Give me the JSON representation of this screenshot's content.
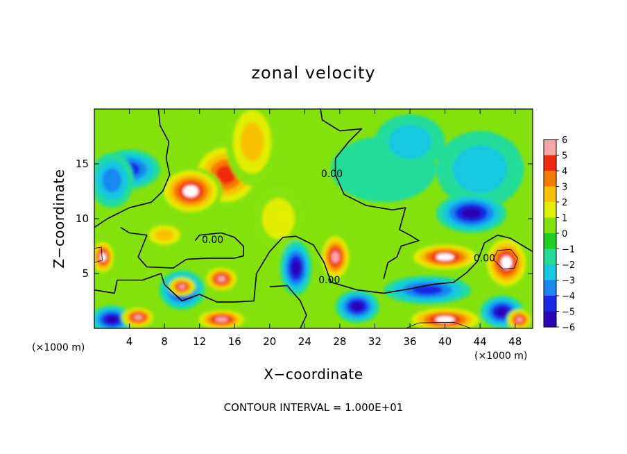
{
  "chart_data": {
    "type": "heatmap",
    "title": "zonal velocity",
    "xlabel": "X−coordinate",
    "ylabel": "Z−coordinate",
    "x_unit_label": "(×1000 m)",
    "z_unit_label": "(×1000 m)",
    "xlim": [
      0,
      50
    ],
    "ylim": [
      0,
      20
    ],
    "x_ticks": [
      "4",
      "8",
      "12",
      "16",
      "20",
      "24",
      "28",
      "32",
      "36",
      "40",
      "44",
      "48"
    ],
    "y_ticks": [
      "5",
      "10",
      "15"
    ],
    "colorbar": {
      "range": [
        -6,
        6
      ],
      "ticks": [
        "6",
        "5",
        "4",
        "3",
        "2",
        "1",
        "0",
        "−1",
        "−2",
        "−3",
        "−4",
        "−5",
        "−6"
      ],
      "stops": [
        "#6a0a9a",
        "#2a06b8",
        "#1828e6",
        "#1888f0",
        "#16c8e0",
        "#22dc9a",
        "#20d020",
        "#84e20c",
        "#e2ee00",
        "#f8c200",
        "#f67a00",
        "#ef2a10",
        "#f6a8a8"
      ]
    },
    "contour_labels": [
      "0.00",
      "0.00",
      "0.00",
      "0.00"
    ],
    "contour_interval_text": "CONTOUR INTERVAL = 1.000E+01",
    "features": [
      {
        "x": 11,
        "z": 12.5,
        "value": 8,
        "rx": 3.6,
        "rz": 2.2
      },
      {
        "x": 15,
        "z": 14,
        "value": 5,
        "rx": 4,
        "rz": 3
      },
      {
        "x": 18,
        "z": 17,
        "value": 3,
        "rx": 3,
        "rz": 4
      },
      {
        "x": 4,
        "z": 14.5,
        "value": -4,
        "rx": 3.5,
        "rz": 1.8
      },
      {
        "x": 2,
        "z": 13.5,
        "value": -3,
        "rx": 2.5,
        "rz": 2.5
      },
      {
        "x": 40,
        "z": 6.5,
        "value": 8,
        "rx": 4.2,
        "rz": 1.3
      },
      {
        "x": 43,
        "z": 10.5,
        "value": -5,
        "rx": 4,
        "rz": 1.8
      },
      {
        "x": 47,
        "z": 6,
        "value": 7,
        "rx": 2.6,
        "rz": 2.5
      },
      {
        "x": 27.5,
        "z": 6.5,
        "value": 6,
        "rx": 1.8,
        "rz": 2.2
      },
      {
        "x": 23,
        "z": 5.5,
        "value": -5,
        "rx": 1.8,
        "rz": 2.5
      },
      {
        "x": 10,
        "z": 3.8,
        "value": 6,
        "rx": 1.6,
        "rz": 0.9
      },
      {
        "x": 10,
        "z": 3.5,
        "value": -5,
        "rx": 2.6,
        "rz": 1.8
      },
      {
        "x": 14.5,
        "z": 4.5,
        "value": 6,
        "rx": 2,
        "rz": 1.2
      },
      {
        "x": 40,
        "z": 0.8,
        "value": 7,
        "rx": 4.5,
        "rz": 1.2
      },
      {
        "x": 38,
        "z": 3.5,
        "value": -4,
        "rx": 5,
        "rz": 1.3
      },
      {
        "x": 46.5,
        "z": 1.5,
        "value": -5,
        "rx": 2.5,
        "rz": 1.5
      },
      {
        "x": 48.5,
        "z": 0.8,
        "value": 6,
        "rx": 1.5,
        "rz": 1
      },
      {
        "x": 1,
        "z": 6.5,
        "value": 8,
        "rx": 1.4,
        "rz": 1.6
      },
      {
        "x": 2,
        "z": 0.8,
        "value": -5,
        "rx": 2.5,
        "rz": 1.3
      },
      {
        "x": 5,
        "z": 1,
        "value": 6,
        "rx": 2,
        "rz": 1
      },
      {
        "x": 30,
        "z": 2,
        "value": -5,
        "rx": 2.5,
        "rz": 1.5
      },
      {
        "x": 14.5,
        "z": 0.8,
        "value": 6,
        "rx": 3,
        "rz": 1
      },
      {
        "x": 33,
        "z": 14.5,
        "value": -1,
        "rx": 6,
        "rz": 3
      },
      {
        "x": 44,
        "z": 14.5,
        "value": -2,
        "rx": 5,
        "rz": 3.5
      },
      {
        "x": 21,
        "z": 10,
        "value": 2,
        "rx": 3,
        "rz": 3
      },
      {
        "x": 8,
        "z": 8.5,
        "value": 3,
        "rx": 2.5,
        "rz": 1.2
      },
      {
        "x": 36,
        "z": 17,
        "value": -2,
        "rx": 4,
        "rz": 2.5
      }
    ],
    "contours": [
      [
        [
          7.3,
          20
        ],
        [
          7.5,
          18.5
        ],
        [
          8.5,
          17
        ],
        [
          8.2,
          15.5
        ],
        [
          8.6,
          14
        ],
        [
          7.8,
          12.5
        ],
        [
          6.5,
          11.5
        ],
        [
          4,
          11
        ],
        [
          1.5,
          10
        ],
        [
          0,
          9.2
        ]
      ],
      [
        [
          25.8,
          20
        ],
        [
          26,
          19
        ],
        [
          28,
          18
        ],
        [
          30.5,
          18.2
        ],
        [
          29,
          17
        ],
        [
          27.5,
          15.5
        ],
        [
          27.5,
          14
        ],
        [
          28.5,
          12.2
        ],
        [
          31,
          11.2
        ],
        [
          34,
          10.8
        ],
        [
          35.5,
          11
        ],
        [
          34.8,
          9
        ],
        [
          36,
          8.5
        ],
        [
          37,
          8
        ],
        [
          35,
          7.5
        ],
        [
          34.5,
          6.5
        ],
        [
          33.5,
          6
        ],
        [
          33,
          4.5
        ]
      ],
      [
        [
          11.5,
          8
        ],
        [
          12,
          8.5
        ],
        [
          14.5,
          8.7
        ],
        [
          16,
          8.3
        ],
        [
          17,
          7.5
        ],
        [
          17,
          6.6
        ],
        [
          16,
          6.4
        ],
        [
          13,
          6.4
        ],
        [
          10.5,
          6.3
        ],
        [
          9,
          5.5
        ],
        [
          6,
          5.6
        ],
        [
          5,
          6.5
        ],
        [
          5.5,
          7.5
        ],
        [
          6,
          8.5
        ],
        [
          4,
          8.7
        ],
        [
          3,
          9.2
        ]
      ],
      [
        [
          0,
          3.5
        ],
        [
          2.3,
          3.2
        ],
        [
          2.6,
          4.4
        ],
        [
          5.5,
          4.4
        ],
        [
          7.6,
          5
        ],
        [
          8,
          4
        ],
        [
          10,
          2.5
        ],
        [
          12,
          3.1
        ],
        [
          14,
          2.4
        ],
        [
          16,
          2.4
        ],
        [
          18.2,
          2.5
        ],
        [
          18.5,
          5
        ],
        [
          20,
          7
        ],
        [
          21.5,
          8.3
        ],
        [
          23,
          8.4
        ],
        [
          25,
          7.6
        ],
        [
          26.2,
          6
        ],
        [
          27,
          4.2
        ],
        [
          30,
          3.5
        ],
        [
          33,
          3.2
        ],
        [
          36,
          3.6
        ],
        [
          38.5,
          4
        ],
        [
          41,
          4.2
        ],
        [
          42.5,
          5.1
        ],
        [
          43.7,
          6.1
        ],
        [
          44.5,
          7.8
        ],
        [
          46,
          8.5
        ],
        [
          47.5,
          8.2
        ],
        [
          50,
          7
        ]
      ],
      [
        [
          20,
          3.8
        ],
        [
          22,
          3.9
        ],
        [
          23.5,
          2.5
        ],
        [
          24.2,
          1.2
        ],
        [
          23.5,
          0
        ]
      ]
    ],
    "thin_contours": [
      [
        [
          0,
          6
        ],
        [
          0.9,
          6.2
        ],
        [
          0.8,
          7.4
        ],
        [
          0,
          7.3
        ]
      ],
      [
        [
          45.5,
          6.3
        ],
        [
          46.6,
          5.4
        ],
        [
          47.9,
          5.5
        ],
        [
          48.3,
          6.4
        ],
        [
          47.5,
          7.2
        ],
        [
          46,
          7.1
        ],
        [
          45.5,
          6.3
        ]
      ],
      [
        [
          35.5,
          0
        ],
        [
          37,
          0.5
        ],
        [
          41,
          0.55
        ],
        [
          43,
          0
        ]
      ]
    ],
    "contour_label_positions": [
      [
        13.5,
        7.8
      ],
      [
        27.1,
        13.8
      ],
      [
        26.8,
        4.1
      ],
      [
        44.5,
        6.1
      ]
    ]
  }
}
